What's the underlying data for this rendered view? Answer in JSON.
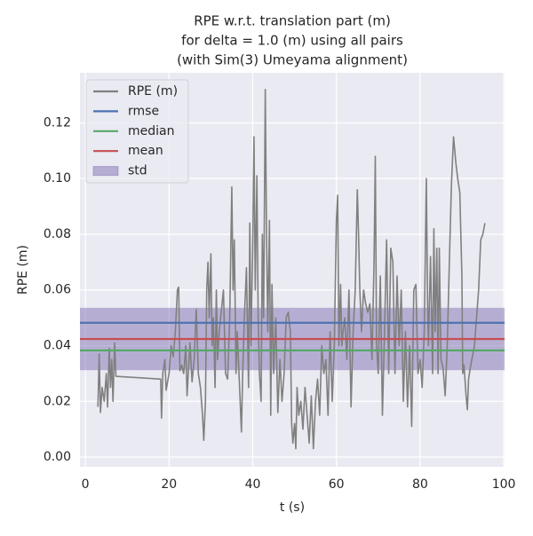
{
  "chart_data": {
    "type": "line",
    "title": [
      "RPE w.r.t. translation part (m)",
      "for delta = 1.0 (m) using all pairs",
      "(with Sim(3) Umeyama alignment)"
    ],
    "xlabel": "t (s)",
    "ylabel": "RPE (m)",
    "xlim": [
      -1.3,
      100.2
    ],
    "ylim": [
      -0.0035,
      0.138
    ],
    "xticks": [
      0,
      20,
      40,
      60,
      80,
      100
    ],
    "yticks": [
      {
        "value": 0,
        "label": "0.00"
      },
      {
        "value": 0.02,
        "label": "0.02"
      },
      {
        "value": 0.04,
        "label": "0.04"
      },
      {
        "value": 0.06,
        "label": "0.06"
      },
      {
        "value": 0.08,
        "label": "0.08"
      },
      {
        "value": 0.1,
        "label": "0.10"
      },
      {
        "value": 0.12,
        "label": "0.12"
      }
    ],
    "grid": true,
    "legend": "upper left",
    "x": [
      3,
      3.3,
      3.6,
      4,
      4.5,
      5,
      5.3,
      5.7,
      6,
      6.3,
      6.6,
      7,
      7.3,
      18,
      18.2,
      18.5,
      19,
      19.3,
      20,
      20.5,
      21,
      21.5,
      22,
      22.3,
      22.6,
      23,
      23.5,
      24,
      24.3,
      25,
      25.5,
      26,
      26.5,
      27,
      27.5,
      28,
      28.3,
      28.7,
      29,
      29.3,
      29.6,
      30,
      30.3,
      30.6,
      31,
      31.3,
      31.6,
      32,
      33,
      33.5,
      34,
      34.5,
      35,
      35.3,
      35.6,
      36,
      36.3,
      37,
      37.3,
      37.6,
      38,
      38.5,
      39,
      39.3,
      39.6,
      40,
      40.3,
      40.6,
      41,
      41.3,
      41.6,
      42,
      42.3,
      42.6,
      43,
      43.3,
      43.6,
      44,
      44.3,
      44.6,
      45,
      45.5,
      46,
      46.5,
      47,
      47.5,
      48,
      48.5,
      49,
      49.3,
      49.6,
      50,
      50.3,
      50.6,
      51,
      51.5,
      52,
      52.5,
      53,
      53.5,
      54,
      54.5,
      55,
      55.5,
      56,
      56.5,
      57,
      57.5,
      58,
      58.5,
      59,
      59.5,
      60,
      60.3,
      60.6,
      61,
      61.3,
      61.6,
      62,
      62.5,
      63,
      63.5,
      64,
      64.5,
      65,
      65.3,
      65.6,
      66,
      66.5,
      67,
      67.5,
      68,
      68.5,
      69,
      69.3,
      69.6,
      70,
      70.5,
      71,
      71.5,
      72,
      72.5,
      73,
      73.5,
      74,
      74.5,
      75,
      75.5,
      76,
      76.5,
      77,
      77.5,
      78,
      78.5,
      79,
      79.5,
      80,
      80.5,
      81,
      81.5,
      81.8,
      82,
      82.5,
      83,
      83.3,
      83.6,
      84,
      84.3,
      84.6,
      85,
      85.5,
      86,
      86.5,
      87,
      87.5,
      88,
      88.3,
      88.6,
      89,
      89.5,
      90,
      90.2,
      90.5,
      91,
      91.3,
      91.6,
      92,
      93,
      94,
      94.5,
      95,
      95.5
    ],
    "series": [
      {
        "name": "RPE (m)",
        "color": "#808080",
        "values": [
          0.018,
          0.037,
          0.016,
          0.025,
          0.02,
          0.03,
          0.018,
          0.039,
          0.025,
          0.035,
          0.02,
          0.041,
          0.029,
          0.028,
          0.014,
          0.03,
          0.035,
          0.024,
          0.03,
          0.04,
          0.036,
          0.045,
          0.06,
          0.061,
          0.031,
          0.033,
          0.03,
          0.04,
          0.022,
          0.041,
          0.027,
          0.035,
          0.053,
          0.03,
          0.025,
          0.015,
          0.006,
          0.02,
          0.06,
          0.07,
          0.05,
          0.073,
          0.04,
          0.05,
          0.025,
          0.06,
          0.035,
          0.045,
          0.06,
          0.03,
          0.028,
          0.05,
          0.097,
          0.06,
          0.078,
          0.03,
          0.045,
          0.02,
          0.009,
          0.03,
          0.05,
          0.068,
          0.025,
          0.084,
          0.04,
          0.076,
          0.115,
          0.06,
          0.101,
          0.05,
          0.03,
          0.02,
          0.08,
          0.05,
          0.132,
          0.08,
          0.045,
          0.085,
          0.015,
          0.062,
          0.03,
          0.05,
          0.016,
          0.035,
          0.02,
          0.03,
          0.05,
          0.052,
          0.045,
          0.012,
          0.005,
          0.012,
          0.003,
          0.025,
          0.015,
          0.02,
          0.01,
          0.025,
          0.015,
          0.005,
          0.022,
          0.003,
          0.02,
          0.028,
          0.015,
          0.04,
          0.03,
          0.035,
          0.015,
          0.045,
          0.02,
          0.04,
          0.085,
          0.094,
          0.04,
          0.062,
          0.04,
          0.045,
          0.05,
          0.035,
          0.06,
          0.018,
          0.045,
          0.06,
          0.096,
          0.08,
          0.06,
          0.045,
          0.06,
          0.055,
          0.052,
          0.055,
          0.035,
          0.07,
          0.108,
          0.04,
          0.03,
          0.065,
          0.015,
          0.045,
          0.078,
          0.03,
          0.075,
          0.07,
          0.03,
          0.065,
          0.04,
          0.06,
          0.02,
          0.045,
          0.018,
          0.04,
          0.011,
          0.06,
          0.062,
          0.03,
          0.035,
          0.025,
          0.045,
          0.1,
          0.055,
          0.04,
          0.072,
          0.03,
          0.082,
          0.045,
          0.075,
          0.03,
          0.075,
          0.035,
          0.032,
          0.022,
          0.04,
          0.07,
          0.098,
          0.115,
          0.11,
          0.105,
          0.1,
          0.095,
          0.065,
          0.03,
          0.033,
          0.022,
          0.017,
          0.028,
          0.032,
          0.04,
          0.06,
          0.078,
          0.08,
          0.084
        ]
      }
    ],
    "stats": [
      {
        "name": "rmse",
        "color": "#4c72b0",
        "value": 0.0482
      },
      {
        "name": "median",
        "color": "#55a868",
        "value": 0.0383
      },
      {
        "name": "mean",
        "color": "#c44e52",
        "value": 0.0424
      },
      {
        "name": "std",
        "color": "#8172b2",
        "value": 0.0112
      }
    ]
  }
}
